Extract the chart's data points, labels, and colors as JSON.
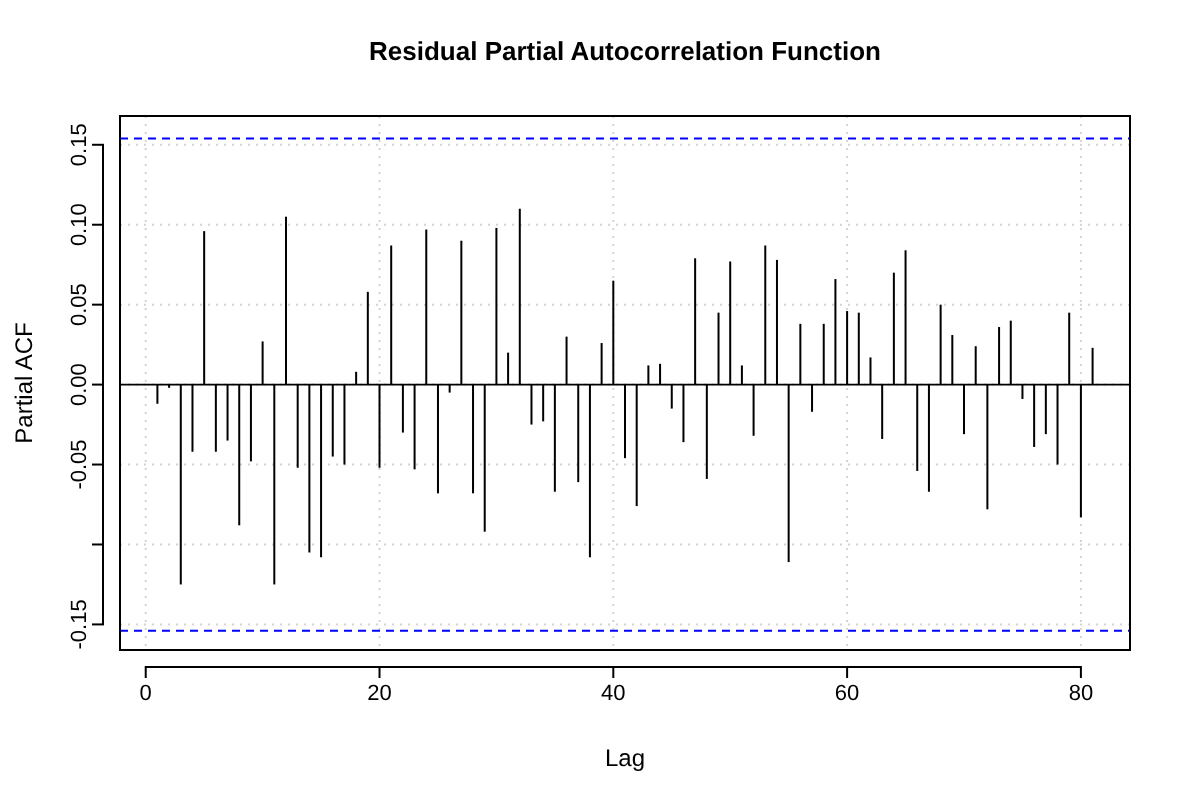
{
  "chart_data": {
    "type": "bar",
    "title": "Residual Partial Autocorrelation Function",
    "xlabel": "Lag",
    "ylabel": "Partial ACF",
    "x": [
      1,
      2,
      3,
      4,
      5,
      6,
      7,
      8,
      9,
      10,
      11,
      12,
      13,
      14,
      15,
      16,
      17,
      18,
      19,
      20,
      21,
      22,
      23,
      24,
      25,
      26,
      27,
      28,
      29,
      30,
      31,
      32,
      33,
      34,
      35,
      36,
      37,
      38,
      39,
      40,
      41,
      42,
      43,
      44,
      45,
      46,
      47,
      48,
      49,
      50,
      51,
      52,
      53,
      54,
      55,
      56,
      57,
      58,
      59,
      60,
      61,
      62,
      63,
      64,
      65,
      66,
      67,
      68,
      69,
      70,
      71,
      72,
      73,
      74,
      75,
      76,
      77,
      78,
      79,
      80,
      81
    ],
    "values": [
      -0.012,
      -0.002,
      -0.125,
      -0.042,
      0.096,
      -0.042,
      -0.035,
      -0.088,
      -0.048,
      0.027,
      -0.125,
      0.105,
      -0.052,
      -0.105,
      -0.108,
      -0.045,
      -0.05,
      0.008,
      0.058,
      -0.052,
      0.087,
      -0.03,
      -0.053,
      0.097,
      -0.068,
      -0.005,
      0.09,
      -0.068,
      -0.092,
      0.098,
      0.02,
      0.11,
      -0.025,
      -0.023,
      -0.067,
      0.03,
      -0.061,
      -0.108,
      0.026,
      0.065,
      -0.046,
      -0.076,
      0.012,
      0.013,
      -0.015,
      -0.036,
      0.079,
      -0.059,
      0.045,
      0.077,
      0.012,
      -0.032,
      0.087,
      0.078,
      -0.111,
      0.038,
      -0.017,
      0.038,
      0.066,
      0.046,
      0.045,
      0.017,
      -0.034,
      0.07,
      0.084,
      -0.054,
      -0.067,
      0.05,
      0.031,
      -0.031,
      0.024,
      -0.078,
      0.036,
      0.04,
      -0.009,
      -0.039,
      -0.031,
      -0.05,
      0.045,
      -0.083,
      0.023
    ],
    "color": "#000000",
    "xlim": [
      -2.2,
      84.2
    ],
    "xticks": [
      0,
      20,
      40,
      60,
      80
    ],
    "ylim": [
      -0.166,
      0.168
    ],
    "yticks": [
      {
        "value": -0.15,
        "label": "-0.15"
      },
      {
        "value": -0.1,
        "label": null
      },
      {
        "value": -0.05,
        "label": "-0.05"
      },
      {
        "value": 0,
        "label": "0.00"
      },
      {
        "value": 0.05,
        "label": "0.05"
      },
      {
        "value": 0.1,
        "label": "0.10"
      },
      {
        "value": 0.15,
        "label": "0.15"
      }
    ],
    "grid": true,
    "ref_lines": [
      {
        "axis": "y",
        "value": 0.154,
        "color": "#0000ff",
        "line_style": "dashed"
      },
      {
        "axis": "y",
        "value": -0.154,
        "color": "#0000ff",
        "line_style": "dashed"
      }
    ]
  }
}
